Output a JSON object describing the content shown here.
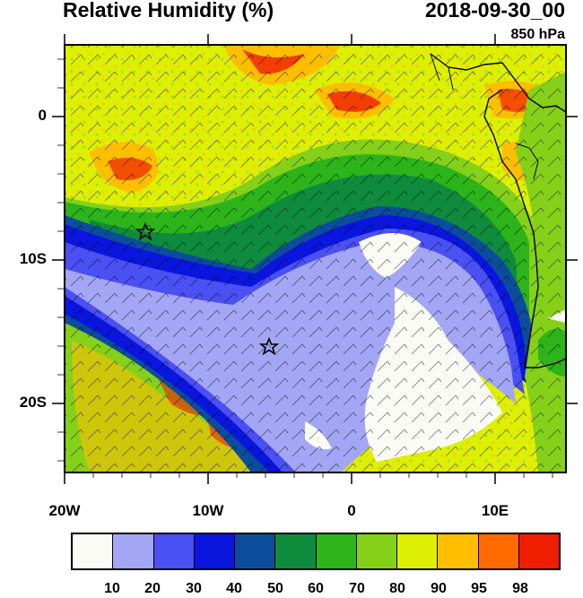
{
  "title": "Relative Humidity (%)",
  "datetime": "2018-09-30_00",
  "level": "850 hPa",
  "lat_labels": [
    "0",
    "10S",
    "20S"
  ],
  "lon_labels": [
    "20W",
    "10W",
    "0",
    "10E"
  ],
  "colorbar": {
    "colors": [
      "#fbfbf5",
      "#a3a6f4",
      "#4a50f2",
      "#0a16dd",
      "#0c4d9b",
      "#0e8b3c",
      "#2cb41a",
      "#85d019",
      "#ddf004",
      "#ffbf00",
      "#ff6b00",
      "#f01e00"
    ],
    "labels": [
      "10",
      "20",
      "30",
      "40",
      "50",
      "60",
      "70",
      "80",
      "90",
      "95",
      "98"
    ]
  },
  "markers": [
    "star-marker-1",
    "star-marker-2"
  ],
  "field_colors": {
    "white": "#fbfbf5",
    "lavender": "#a3a6f4",
    "blue": "#4a50f2",
    "dblue": "#0a16dd",
    "navy": "#0c4d9b",
    "dgreen": "#0e8b3c",
    "green": "#2cb41a",
    "lgreen": "#85d019",
    "yellow": "#ddf004",
    "orange": "#ffbf00",
    "red": "#f01e00"
  }
}
